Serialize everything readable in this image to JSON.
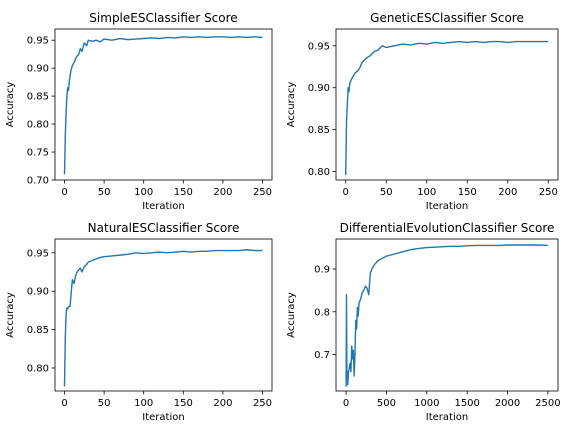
{
  "line_color": "#1f77b4",
  "chart_data": [
    {
      "type": "line",
      "title": "SimpleESClassifier Score",
      "xlabel": "Iteration",
      "ylabel": "Accuracy",
      "xlim": [
        -12,
        262
      ],
      "ylim": [
        0.7,
        0.97
      ],
      "xticks": [
        0,
        50,
        100,
        150,
        200,
        250
      ],
      "yticks": [
        0.7,
        0.75,
        0.8,
        0.85,
        0.9,
        0.95
      ],
      "yticklabels": [
        "0.70",
        "0.75",
        "0.80",
        "0.85",
        "0.90",
        "0.95"
      ],
      "series": [
        {
          "x": [
            0,
            1,
            2,
            3,
            4,
            5,
            6,
            8,
            10,
            12,
            15,
            18,
            20,
            22,
            25,
            28,
            30,
            35,
            40,
            45,
            50,
            60,
            70,
            80,
            90,
            100,
            110,
            120,
            130,
            140,
            150,
            160,
            170,
            180,
            190,
            200,
            210,
            220,
            230,
            240,
            250
          ],
          "y": [
            0.71,
            0.78,
            0.82,
            0.85,
            0.865,
            0.86,
            0.875,
            0.895,
            0.905,
            0.91,
            0.92,
            0.925,
            0.935,
            0.93,
            0.945,
            0.94,
            0.95,
            0.948,
            0.95,
            0.947,
            0.952,
            0.95,
            0.953,
            0.951,
            0.952,
            0.953,
            0.954,
            0.953,
            0.955,
            0.954,
            0.956,
            0.955,
            0.956,
            0.955,
            0.956,
            0.956,
            0.955,
            0.956,
            0.955,
            0.956,
            0.955
          ]
        }
      ]
    },
    {
      "type": "line",
      "title": "GeneticESClassifier Score",
      "xlabel": "Iteration",
      "ylabel": "Accuracy",
      "xlim": [
        -12,
        262
      ],
      "ylim": [
        0.79,
        0.97
      ],
      "xticks": [
        0,
        50,
        100,
        150,
        200,
        250
      ],
      "yticks": [
        0.8,
        0.85,
        0.9,
        0.95
      ],
      "yticklabels": [
        "0.80",
        "0.85",
        "0.90",
        "0.95"
      ],
      "series": [
        {
          "x": [
            0,
            1,
            2,
            3,
            4,
            5,
            7,
            10,
            12,
            15,
            18,
            20,
            25,
            30,
            35,
            40,
            45,
            50,
            60,
            70,
            80,
            90,
            100,
            110,
            120,
            130,
            140,
            150,
            160,
            170,
            180,
            190,
            200,
            210,
            220,
            230,
            240,
            250
          ],
          "y": [
            0.796,
            0.86,
            0.88,
            0.9,
            0.895,
            0.905,
            0.91,
            0.915,
            0.918,
            0.92,
            0.925,
            0.93,
            0.935,
            0.938,
            0.943,
            0.945,
            0.95,
            0.948,
            0.95,
            0.952,
            0.951,
            0.953,
            0.952,
            0.954,
            0.953,
            0.954,
            0.955,
            0.954,
            0.955,
            0.954,
            0.955,
            0.955,
            0.954,
            0.955,
            0.955,
            0.955,
            0.955,
            0.955
          ]
        }
      ]
    },
    {
      "type": "line",
      "title": "NaturalESClassifier Score",
      "xlabel": "Iteration",
      "ylabel": "Accuracy",
      "xlim": [
        -12,
        262
      ],
      "ylim": [
        0.77,
        0.968
      ],
      "xticks": [
        0,
        50,
        100,
        150,
        200,
        250
      ],
      "yticks": [
        0.8,
        0.85,
        0.9,
        0.95
      ],
      "yticklabels": [
        "0.80",
        "0.85",
        "0.90",
        "0.95"
      ],
      "series": [
        {
          "x": [
            0,
            1,
            2,
            3,
            4,
            5,
            7,
            9,
            10,
            12,
            14,
            16,
            18,
            20,
            22,
            25,
            28,
            30,
            35,
            40,
            45,
            50,
            60,
            70,
            80,
            90,
            100,
            110,
            120,
            130,
            140,
            150,
            160,
            170,
            180,
            190,
            200,
            210,
            220,
            230,
            240,
            250
          ],
          "y": [
            0.776,
            0.84,
            0.87,
            0.878,
            0.877,
            0.88,
            0.88,
            0.905,
            0.915,
            0.91,
            0.92,
            0.925,
            0.928,
            0.93,
            0.925,
            0.932,
            0.935,
            0.938,
            0.94,
            0.942,
            0.944,
            0.945,
            0.946,
            0.947,
            0.948,
            0.95,
            0.949,
            0.95,
            0.951,
            0.95,
            0.951,
            0.952,
            0.951,
            0.952,
            0.952,
            0.953,
            0.953,
            0.953,
            0.953,
            0.954,
            0.953,
            0.953
          ]
        }
      ]
    },
    {
      "type": "line",
      "title": "DifferentialEvolutionClassifier Score",
      "xlabel": "Iteration",
      "ylabel": "Accuracy",
      "xlim": [
        -125,
        2625
      ],
      "ylim": [
        0.615,
        0.97
      ],
      "xticks": [
        0,
        500,
        1000,
        1500,
        2000,
        2500
      ],
      "yticks": [
        0.7,
        0.8,
        0.9
      ],
      "yticklabels": [
        "0.7",
        "0.8",
        "0.9"
      ],
      "series": [
        {
          "x": [
            0,
            5,
            10,
            15,
            20,
            30,
            40,
            50,
            60,
            70,
            80,
            90,
            100,
            110,
            120,
            130,
            140,
            150,
            160,
            180,
            200,
            220,
            240,
            260,
            280,
            300,
            320,
            350,
            400,
            450,
            500,
            600,
            700,
            800,
            900,
            1000,
            1100,
            1200,
            1300,
            1400,
            1500,
            1600,
            1700,
            1800,
            1900,
            2000,
            2100,
            2200,
            2300,
            2400,
            2500
          ],
          "y": [
            0.625,
            0.84,
            0.65,
            0.66,
            0.63,
            0.66,
            0.67,
            0.68,
            0.66,
            0.72,
            0.69,
            0.71,
            0.65,
            0.7,
            0.78,
            0.76,
            0.81,
            0.79,
            0.82,
            0.83,
            0.845,
            0.85,
            0.86,
            0.855,
            0.84,
            0.89,
            0.9,
            0.91,
            0.92,
            0.925,
            0.93,
            0.935,
            0.94,
            0.945,
            0.948,
            0.95,
            0.951,
            0.952,
            0.953,
            0.953,
            0.954,
            0.955,
            0.955,
            0.955,
            0.955,
            0.956,
            0.956,
            0.956,
            0.956,
            0.956,
            0.955
          ]
        }
      ]
    }
  ]
}
